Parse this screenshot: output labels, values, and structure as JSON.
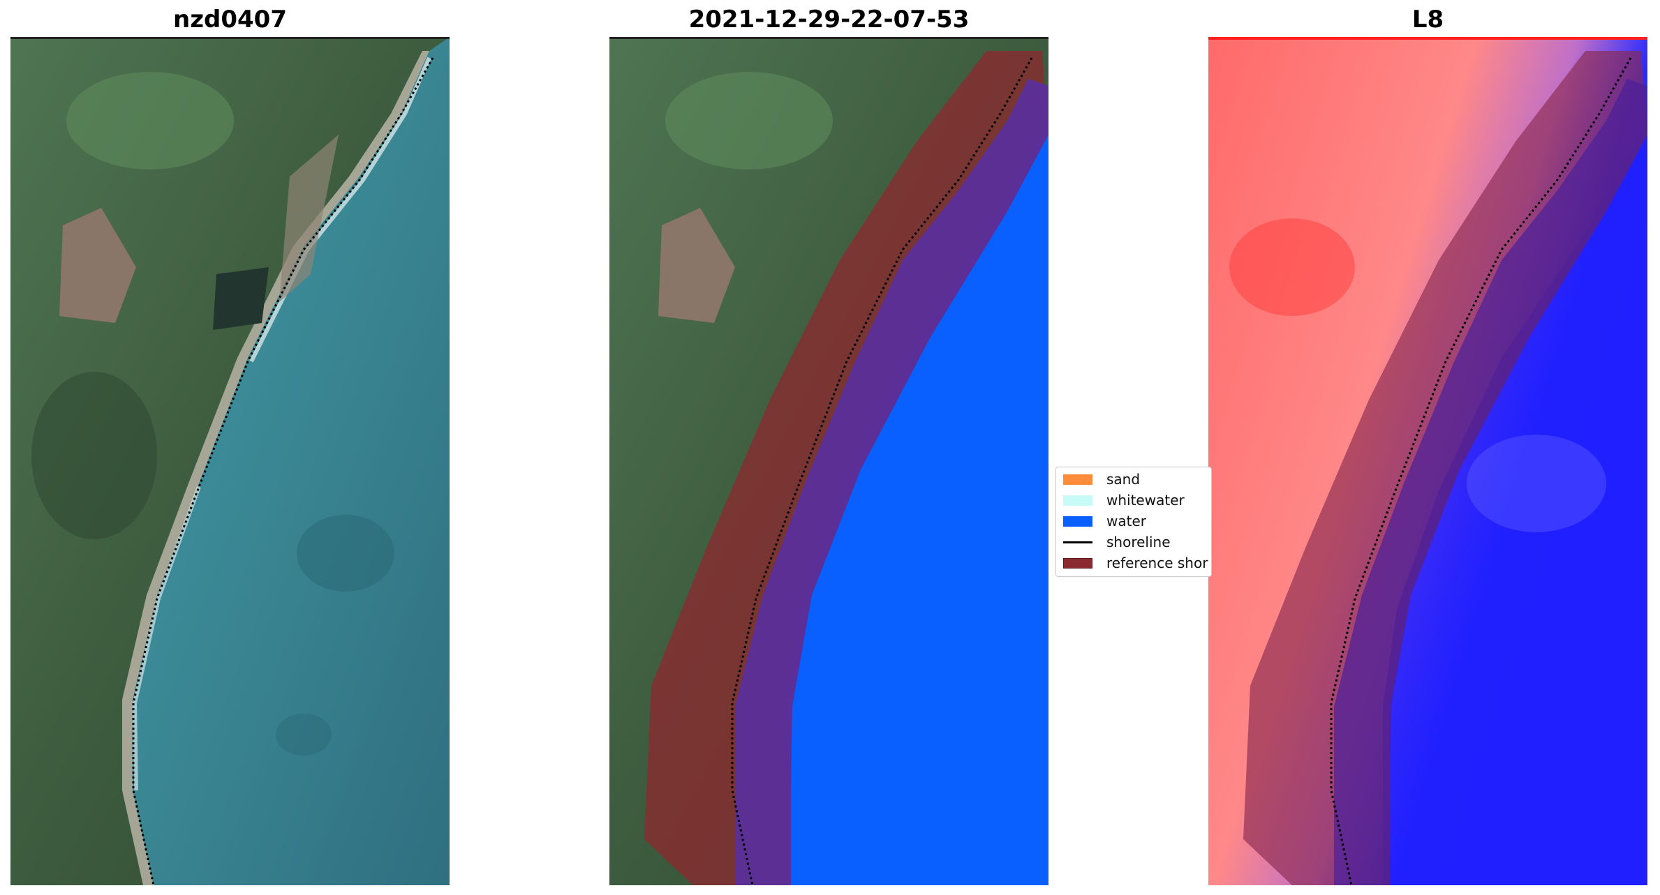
{
  "panels": [
    {
      "title": "nzd0407"
    },
    {
      "title": "2021-12-29-22-07-53"
    },
    {
      "title": "L8"
    }
  ],
  "legend": {
    "items": [
      {
        "label": "sand",
        "color": "#ff8c3a",
        "kind": "patch"
      },
      {
        "label": "whitewater",
        "color": "#c8fbf8",
        "kind": "patch"
      },
      {
        "label": "water",
        "color": "#0a5fff",
        "kind": "patch"
      },
      {
        "label": "shoreline",
        "color": "#000000",
        "kind": "line"
      },
      {
        "label": "reference shor",
        "color": "#8b2a30",
        "kind": "patch"
      }
    ]
  },
  "colors": {
    "land_green": "#3a5a3a",
    "sea_teal": "#3b8a97",
    "classified_water": "#0a5fff",
    "reference_buffer": "#8b2a30",
    "index_red": "#ff4d4d",
    "index_blue": "#1e1eff"
  }
}
